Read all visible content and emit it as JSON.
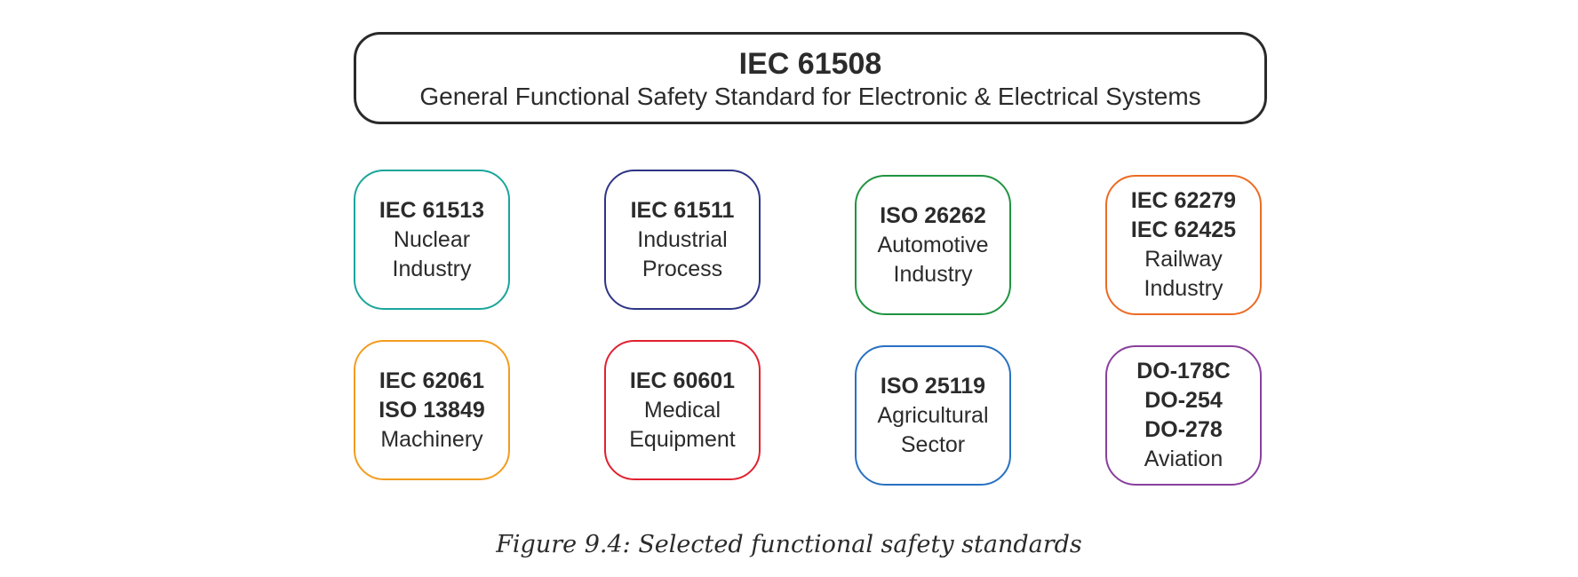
{
  "main": {
    "title": "IEC 61508",
    "subtitle": "General Functional Safety Standard for Electronic & Electrical Systems"
  },
  "standards": [
    {
      "codes": [
        "IEC 61513"
      ],
      "sector": [
        "Nuclear",
        "Industry"
      ],
      "color": "#1aa59a"
    },
    {
      "codes": [
        "IEC 61511"
      ],
      "sector": [
        "Industrial",
        "Process"
      ],
      "color": "#2e3585"
    },
    {
      "codes": [
        "ISO 26262"
      ],
      "sector": [
        "Automotive",
        "Industry"
      ],
      "color": "#1f9440"
    },
    {
      "codes": [
        "IEC 62279",
        "IEC 62425"
      ],
      "sector": [
        "Railway",
        "Industry"
      ],
      "color": "#ec6b23"
    },
    {
      "codes": [
        "IEC 62061",
        "ISO 13849"
      ],
      "sector": [
        "Machinery"
      ],
      "color": "#f39c1f"
    },
    {
      "codes": [
        "IEC 60601"
      ],
      "sector": [
        "Medical",
        "Equipment"
      ],
      "color": "#e0212f"
    },
    {
      "codes": [
        "ISO 25119"
      ],
      "sector": [
        "Agricultural",
        "Sector"
      ],
      "color": "#2871c2"
    },
    {
      "codes": [
        "DO-178C",
        "DO-254",
        "DO-278"
      ],
      "sector": [
        "Aviation"
      ],
      "color": "#8a3f9c"
    }
  ],
  "caption": "Figure 9.4:  Selected functional safety standards"
}
